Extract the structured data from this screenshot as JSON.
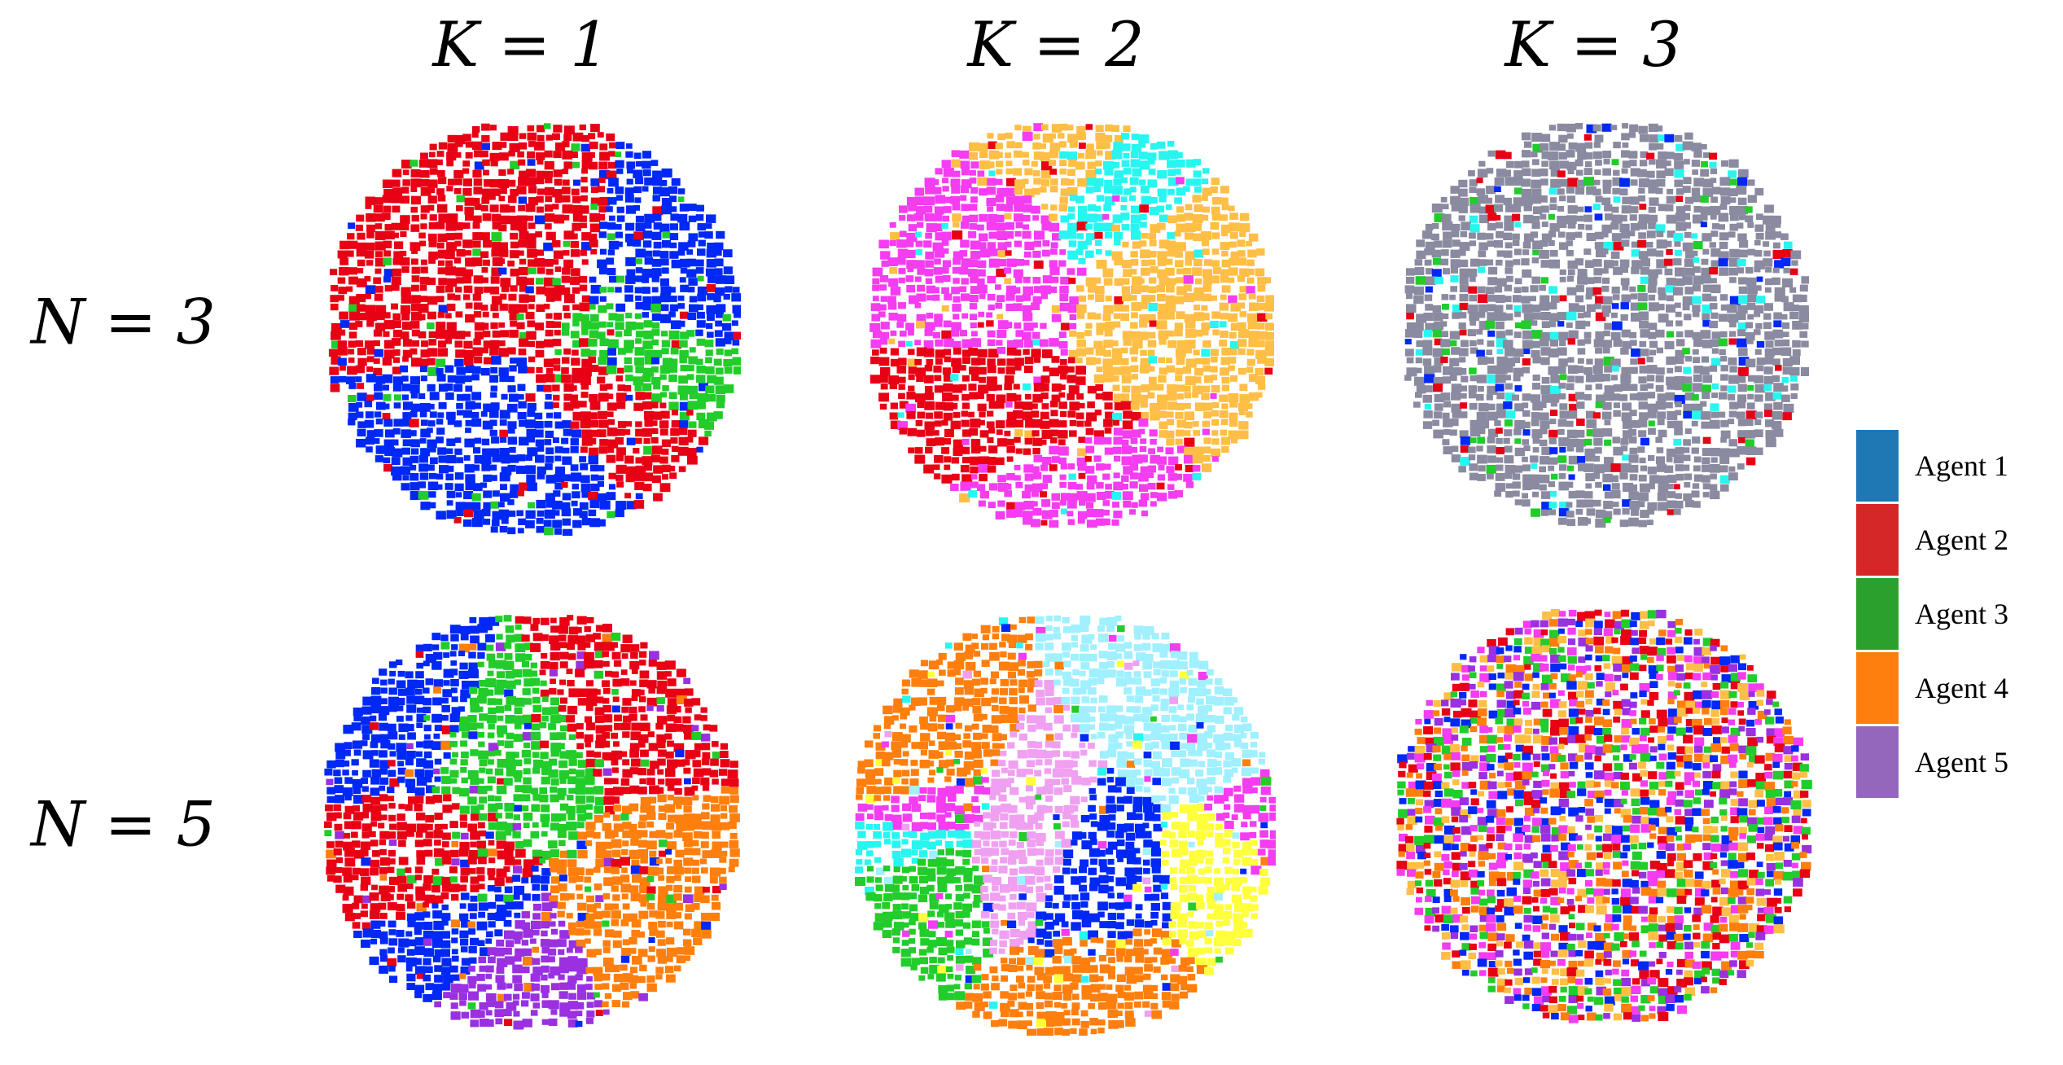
{
  "columns": [
    {
      "label": "K = 1"
    },
    {
      "label": "K = 2"
    },
    {
      "label": "K = 3"
    }
  ],
  "rows": [
    {
      "label": "N = 3"
    },
    {
      "label": "N = 5"
    }
  ],
  "legend": [
    {
      "label": "Agent 1",
      "color": "#1f77b4"
    },
    {
      "label": "Agent 2",
      "color": "#d62728"
    },
    {
      "label": "Agent 3",
      "color": "#2ca02c"
    },
    {
      "label": "Agent 4",
      "color": "#ff7f0e"
    },
    {
      "label": "Agent 5",
      "color": "#9467bd"
    }
  ],
  "panels": [
    {
      "row": 0,
      "col": 0,
      "style": "regions",
      "colors": [
        "#0028f5",
        "#e80014",
        "#22cc2a"
      ]
    },
    {
      "row": 0,
      "col": 1,
      "style": "regions",
      "colors": [
        "#f43cf0",
        "#ffbe46",
        "#28f5f0",
        "#e80014"
      ]
    },
    {
      "row": 0,
      "col": 2,
      "style": "mixed",
      "colors": [
        "#8a8aa0",
        "#0028f5",
        "#e80014",
        "#22cc2a",
        "#28f5f0"
      ]
    },
    {
      "row": 1,
      "col": 0,
      "style": "regions",
      "colors": [
        "#e80014",
        "#0028f5",
        "#9a30e0",
        "#ff7f0e",
        "#22cc2a"
      ]
    },
    {
      "row": 1,
      "col": 1,
      "style": "regions",
      "colors": [
        "#f43cf0",
        "#ff7f0e",
        "#ffff3c",
        "#28f5f0",
        "#0028f5",
        "#a0f0ff",
        "#f0a0f0",
        "#22cc2a"
      ]
    },
    {
      "row": 1,
      "col": 2,
      "style": "mixed",
      "colors": [
        "#e80014",
        "#0028f5",
        "#9a30e0",
        "#ff7f0e",
        "#22cc2a",
        "#f43cf0",
        "#ffbe46"
      ]
    }
  ]
}
